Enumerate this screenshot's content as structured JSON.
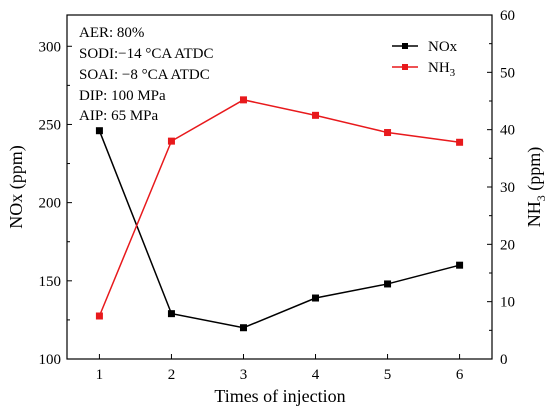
{
  "chart_data": {
    "type": "line",
    "x": [
      1,
      2,
      3,
      4,
      5,
      6
    ],
    "xlabel": "Times of injection",
    "y_left": {
      "label": "NOx (ppm)",
      "lim": [
        100,
        320
      ],
      "ticks": [
        100,
        150,
        200,
        250,
        300
      ]
    },
    "y_right": {
      "label_main": "NH",
      "label_sub": "3",
      "label_tail": " (ppm)",
      "lim": [
        0,
        60
      ],
      "ticks": [
        0,
        10,
        20,
        30,
        40,
        50,
        60
      ]
    },
    "series": [
      {
        "name": "NOx",
        "axis": "left",
        "color": "#000000",
        "marker": "square",
        "values": [
          246,
          129,
          120,
          139,
          148,
          160
        ]
      },
      {
        "name_main": "NH",
        "name_sub": "3",
        "axis": "right",
        "color": "#e8191c",
        "marker": "square",
        "values": [
          7.5,
          38,
          45.2,
          42.5,
          39.5,
          37.8
        ]
      }
    ],
    "annotations": [
      "AER: 80%",
      "SODI:−14 °CA ATDC",
      "SOAI:  −8 °CA ATDC",
      "DIP: 100 MPa",
      "AIP:   65 MPa"
    ],
    "legend_position": "top-right",
    "grid": false
  }
}
